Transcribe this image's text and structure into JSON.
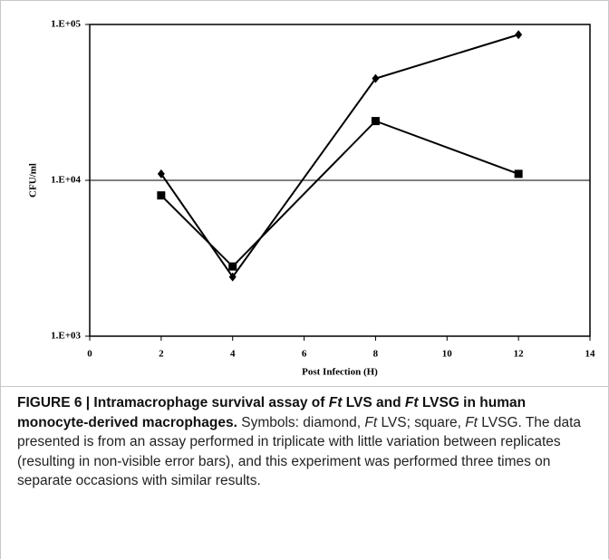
{
  "chart_data": {
    "type": "line",
    "x_label": "Post Infection (H)",
    "y_label": "CFU/ml",
    "x": [
      2,
      4,
      8,
      12
    ],
    "series": [
      {
        "marker": "diamond",
        "color": "#000000",
        "values": [
          11000,
          2400,
          45000,
          86000
        ]
      },
      {
        "marker": "square",
        "color": "#000000",
        "values": [
          8000,
          2800,
          24000,
          11000
        ]
      }
    ],
    "xlim": [
      0,
      14
    ],
    "xticks": [
      0,
      2,
      4,
      6,
      8,
      10,
      12,
      14
    ],
    "ylim": [
      1000,
      100000
    ],
    "log_y": true,
    "yticks": [
      {
        "value": 1000,
        "label": "1.E+03"
      },
      {
        "value": 10000,
        "label": "1.E+04"
      },
      {
        "value": 100000,
        "label": "1.E+05"
      }
    ],
    "grid": true
  },
  "caption": {
    "runs": [
      {
        "text": "FIGURE 6 | Intramacrophage survival assay of ",
        "bold": true,
        "italic": false
      },
      {
        "text": "Ft",
        "bold": true,
        "italic": true
      },
      {
        "text": " LVS and ",
        "bold": true,
        "italic": false
      },
      {
        "text": "Ft",
        "bold": true,
        "italic": true
      },
      {
        "text": " LVSG in human monocyte-derived macrophages.",
        "bold": true,
        "italic": false
      },
      {
        "text": " Symbols: diamond, ",
        "bold": false,
        "italic": false
      },
      {
        "text": "Ft",
        "bold": false,
        "italic": true
      },
      {
        "text": " LVS; square, ",
        "bold": false,
        "italic": false
      },
      {
        "text": "Ft",
        "bold": false,
        "italic": true
      },
      {
        "text": " LVSG. The data presented is from an assay performed in triplicate with little variation between replicates (resulting in non-visible error bars), and this experiment was performed three times on separate occasions with similar results.",
        "bold": false,
        "italic": false
      }
    ]
  }
}
